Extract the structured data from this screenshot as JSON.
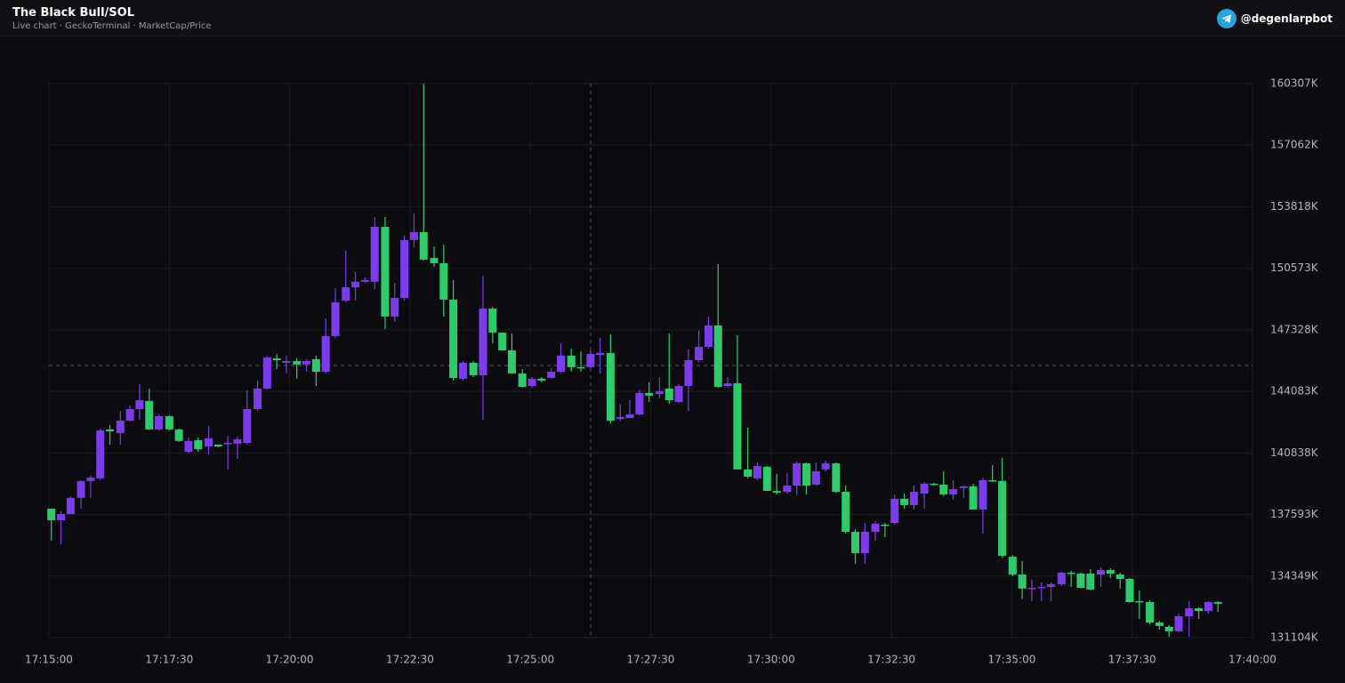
{
  "header": {
    "title": "The Black Bull/SOL",
    "subtitle": "Live chart · GeckoTerminal · MarketCap/Price",
    "handle": "@degenlarpbot"
  },
  "chart_data": {
    "type": "candlestick",
    "x": [
      "17:15:03",
      "17:15:15",
      "17:15:27",
      "17:15:40",
      "17:15:52",
      "17:16:04",
      "17:16:16",
      "17:16:29",
      "17:16:41",
      "17:16:53",
      "17:17:05",
      "17:17:17",
      "17:17:30",
      "17:17:42",
      "17:17:54",
      "17:18:06",
      "17:18:19",
      "17:18:31",
      "17:18:43",
      "17:18:55",
      "17:19:07",
      "17:19:20",
      "17:19:32",
      "17:19:44",
      "17:19:56",
      "17:20:09",
      "17:20:21",
      "17:20:33",
      "17:20:45",
      "17:20:57",
      "17:21:10",
      "17:21:22",
      "17:21:34",
      "17:21:46",
      "17:21:59",
      "17:22:11",
      "17:22:23",
      "17:22:35",
      "17:22:47",
      "17:23:00",
      "17:23:12",
      "17:23:24",
      "17:23:36",
      "17:23:49",
      "17:24:01",
      "17:24:13",
      "17:24:25",
      "17:24:37",
      "17:24:50",
      "17:25:02",
      "17:25:14",
      "17:25:26",
      "17:25:38",
      "17:25:51",
      "17:26:03",
      "17:26:15",
      "17:26:27",
      "17:26:40",
      "17:26:52",
      "17:27:04",
      "17:27:16",
      "17:27:28",
      "17:27:41",
      "17:27:53",
      "17:28:05",
      "17:28:17",
      "17:28:30",
      "17:28:42",
      "17:28:54",
      "17:29:06",
      "17:29:18",
      "17:29:31",
      "17:29:43",
      "17:29:55",
      "17:30:07",
      "17:30:20",
      "17:30:32",
      "17:30:44",
      "17:30:56",
      "17:31:08",
      "17:31:21",
      "17:31:33",
      "17:31:45",
      "17:31:57",
      "17:32:10",
      "17:32:22",
      "17:32:34",
      "17:32:46",
      "17:32:58",
      "17:33:11",
      "17:33:23",
      "17:33:35",
      "17:33:47",
      "17:34:00",
      "17:34:12",
      "17:34:24",
      "17:34:36",
      "17:34:48",
      "17:35:01",
      "17:35:13",
      "17:35:25",
      "17:35:37",
      "17:35:49",
      "17:36:02",
      "17:36:14",
      "17:36:26",
      "17:36:38",
      "17:36:51",
      "17:37:03",
      "17:37:15",
      "17:37:27",
      "17:37:39",
      "17:37:52",
      "17:38:04",
      "17:38:16",
      "17:38:28",
      "17:38:41",
      "17:38:53",
      "17:39:05",
      "17:39:17"
    ],
    "open": [
      137900,
      137290,
      137620,
      138470,
      139360,
      139500,
      142080,
      141890,
      142540,
      143150,
      143580,
      142080,
      142780,
      142080,
      140900,
      141510,
      141180,
      141280,
      141330,
      141330,
      141370,
      143150,
      144230,
      145820,
      145590,
      145680,
      145500,
      145780,
      145120,
      147000,
      148870,
      149570,
      149860,
      149860,
      152760,
      148030,
      149010,
      152060,
      152480,
      151120,
      150840,
      148920,
      144750,
      145590,
      144930,
      148450,
      147180,
      146250,
      145030,
      144370,
      144750,
      144790,
      145120,
      145970,
      145360,
      145360,
      146010,
      146110,
      142640,
      142680,
      142870,
      144000,
      143950,
      144230,
      143530,
      144370,
      145730,
      146430,
      147560,
      144370,
      144510,
      139970,
      139500,
      140110,
      138840,
      138790,
      139120,
      140290,
      139170,
      139970,
      140290,
      138790,
      136680,
      135560,
      136680,
      137060,
      137150,
      138420,
      138090,
      138700,
      139220,
      139170,
      138650,
      138980,
      139080,
      137860,
      139400,
      139360,
      135370,
      134430,
      133690,
      133730,
      133780,
      133920,
      134530,
      134480,
      134480,
      134430,
      134670,
      134430,
      134200,
      133030,
      132980,
      131900,
      131670,
      131440,
      132230,
      132650,
      132510,
      132980
    ],
    "high": [
      137900,
      137760,
      138560,
      139400,
      139640,
      142120,
      142310,
      143060,
      143340,
      144470,
      144230,
      142870,
      142830,
      142120,
      141650,
      141650,
      142260,
      141280,
      141750,
      141700,
      144140,
      144650,
      145970,
      146060,
      145970,
      145820,
      145780,
      145970,
      147930,
      149530,
      151500,
      150370,
      150090,
      153280,
      153280,
      149810,
      152290,
      153470,
      160300,
      151730,
      151820,
      149950,
      145680,
      145680,
      150180,
      148540,
      147180,
      147140,
      145260,
      144840,
      144840,
      145310,
      146620,
      146340,
      146200,
      146250,
      146900,
      147090,
      143430,
      143620,
      144180,
      144560,
      144840,
      147140,
      144470,
      146290,
      147280,
      148030,
      150790,
      144840,
      147040,
      142170,
      140340,
      140150,
      139730,
      139780,
      140390,
      140340,
      140340,
      140430,
      140340,
      139120,
      136820,
      137150,
      137250,
      137150,
      138650,
      138700,
      139120,
      139310,
      139260,
      139870,
      139400,
      139120,
      139220,
      139540,
      140200,
      140580,
      135470,
      135140,
      134150,
      134010,
      134010,
      134580,
      134620,
      134530,
      134720,
      134810,
      134760,
      134530,
      134250,
      133590,
      133080,
      132000,
      131760,
      132370,
      133030,
      132700,
      133030,
      133030
    ],
    "low": [
      136220,
      136030,
      137620,
      137900,
      138470,
      139400,
      141280,
      141280,
      142500,
      142590,
      142080,
      142030,
      142030,
      141420,
      140810,
      140900,
      140760,
      141140,
      139970,
      140530,
      141280,
      143060,
      144180,
      145260,
      145030,
      144750,
      145120,
      144370,
      145030,
      146900,
      148780,
      148870,
      149810,
      149480,
      147370,
      147750,
      148870,
      151680,
      150980,
      150650,
      148030,
      144650,
      144650,
      144840,
      142590,
      146620,
      146250,
      145030,
      144280,
      144280,
      144560,
      144750,
      145030,
      145120,
      145120,
      145310,
      145030,
      142400,
      142500,
      142680,
      142830,
      143530,
      143720,
      143430,
      143480,
      143060,
      145640,
      146340,
      144280,
      144280,
      139970,
      139500,
      139400,
      138840,
      138650,
      138700,
      138610,
      138650,
      139120,
      139870,
      138750,
      136590,
      135000,
      135000,
      136220,
      136400,
      137060,
      137900,
      137860,
      137900,
      139120,
      138560,
      138370,
      138470,
      137860,
      136590,
      139310,
      135330,
      134340,
      133120,
      133030,
      133030,
      133030,
      133830,
      133780,
      133690,
      133590,
      133780,
      134250,
      133690,
      132940,
      132090,
      131810,
      131530,
      131150,
      131390,
      131150,
      132090,
      132370,
      132470
    ],
    "close": [
      137290,
      137620,
      138470,
      139360,
      139540,
      142030,
      141980,
      142540,
      143150,
      143620,
      142080,
      142780,
      142080,
      141470,
      141470,
      141040,
      141610,
      141180,
      141370,
      141560,
      143150,
      144230,
      145870,
      145730,
      145680,
      145500,
      145680,
      145120,
      147000,
      148780,
      149570,
      149860,
      149950,
      152760,
      148030,
      149010,
      152060,
      152480,
      151030,
      150840,
      148920,
      144790,
      145590,
      144930,
      148450,
      147180,
      146250,
      145030,
      144320,
      144750,
      144650,
      145120,
      145970,
      145360,
      145310,
      146060,
      146110,
      142540,
      142730,
      142870,
      144000,
      143860,
      144090,
      143620,
      144370,
      145730,
      146430,
      147560,
      144320,
      144510,
      139970,
      139590,
      140150,
      138840,
      138750,
      139120,
      140290,
      139120,
      139870,
      140290,
      138790,
      136680,
      135560,
      136680,
      137110,
      137010,
      138420,
      138090,
      138790,
      139220,
      139170,
      138650,
      138930,
      139080,
      137860,
      139400,
      139360,
      135420,
      134430,
      133690,
      133730,
      133780,
      133920,
      134530,
      134480,
      133730,
      133640,
      134670,
      134480,
      134200,
      132980,
      132980,
      131900,
      131720,
      131440,
      132230,
      132650,
      132510,
      132980,
      132890
    ],
    "up_color": "#7d3cec",
    "down_color": "#2fcb6b",
    "grid": true,
    "xlim": [
      "17:15:00",
      "17:40:00"
    ],
    "xticks": [
      "17:15:00",
      "17:17:30",
      "17:20:00",
      "17:22:30",
      "17:25:00",
      "17:27:30",
      "17:30:00",
      "17:32:30",
      "17:35:00",
      "17:37:30",
      "17:40:00"
    ],
    "ylim": [
      131104,
      160307
    ],
    "yticks": [
      {
        "value": 160307,
        "label": "160307K"
      },
      {
        "value": 157062,
        "label": "157062K"
      },
      {
        "value": 153818,
        "label": "153818K"
      },
      {
        "value": 150573,
        "label": "150573K"
      },
      {
        "value": 147328,
        "label": "147328K"
      },
      {
        "value": 144083,
        "label": "144083K"
      },
      {
        "value": 140838,
        "label": "140838K"
      },
      {
        "value": 137593,
        "label": "137593K"
      },
      {
        "value": 134349,
        "label": "134349K"
      },
      {
        "value": 131104,
        "label": "131104K"
      }
    ]
  }
}
